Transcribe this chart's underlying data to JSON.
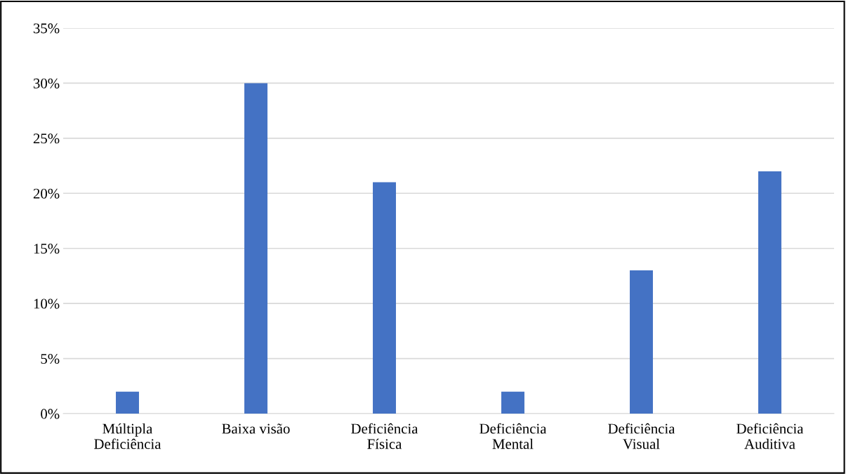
{
  "chart_data": {
    "type": "bar",
    "categories": [
      "Múltipla\nDeficiência",
      "Baixa visão",
      "Deficiência\nFísica",
      "Deficiência\nMental",
      "Deficiência\nVisual",
      "Deficiência\nAuditiva"
    ],
    "values": [
      2,
      30,
      21,
      2,
      13,
      22
    ],
    "color": "#4472c4",
    "ylim": [
      0,
      35
    ],
    "yticks": [
      {
        "value": 0,
        "label": "0%"
      },
      {
        "value": 5,
        "label": "5%"
      },
      {
        "value": 10,
        "label": "10%"
      },
      {
        "value": 15,
        "label": "15%"
      },
      {
        "value": 20,
        "label": "20%"
      },
      {
        "value": 25,
        "label": "25%"
      },
      {
        "value": 30,
        "label": "30%"
      },
      {
        "value": 35,
        "label": "35%"
      }
    ],
    "grid": "y"
  }
}
